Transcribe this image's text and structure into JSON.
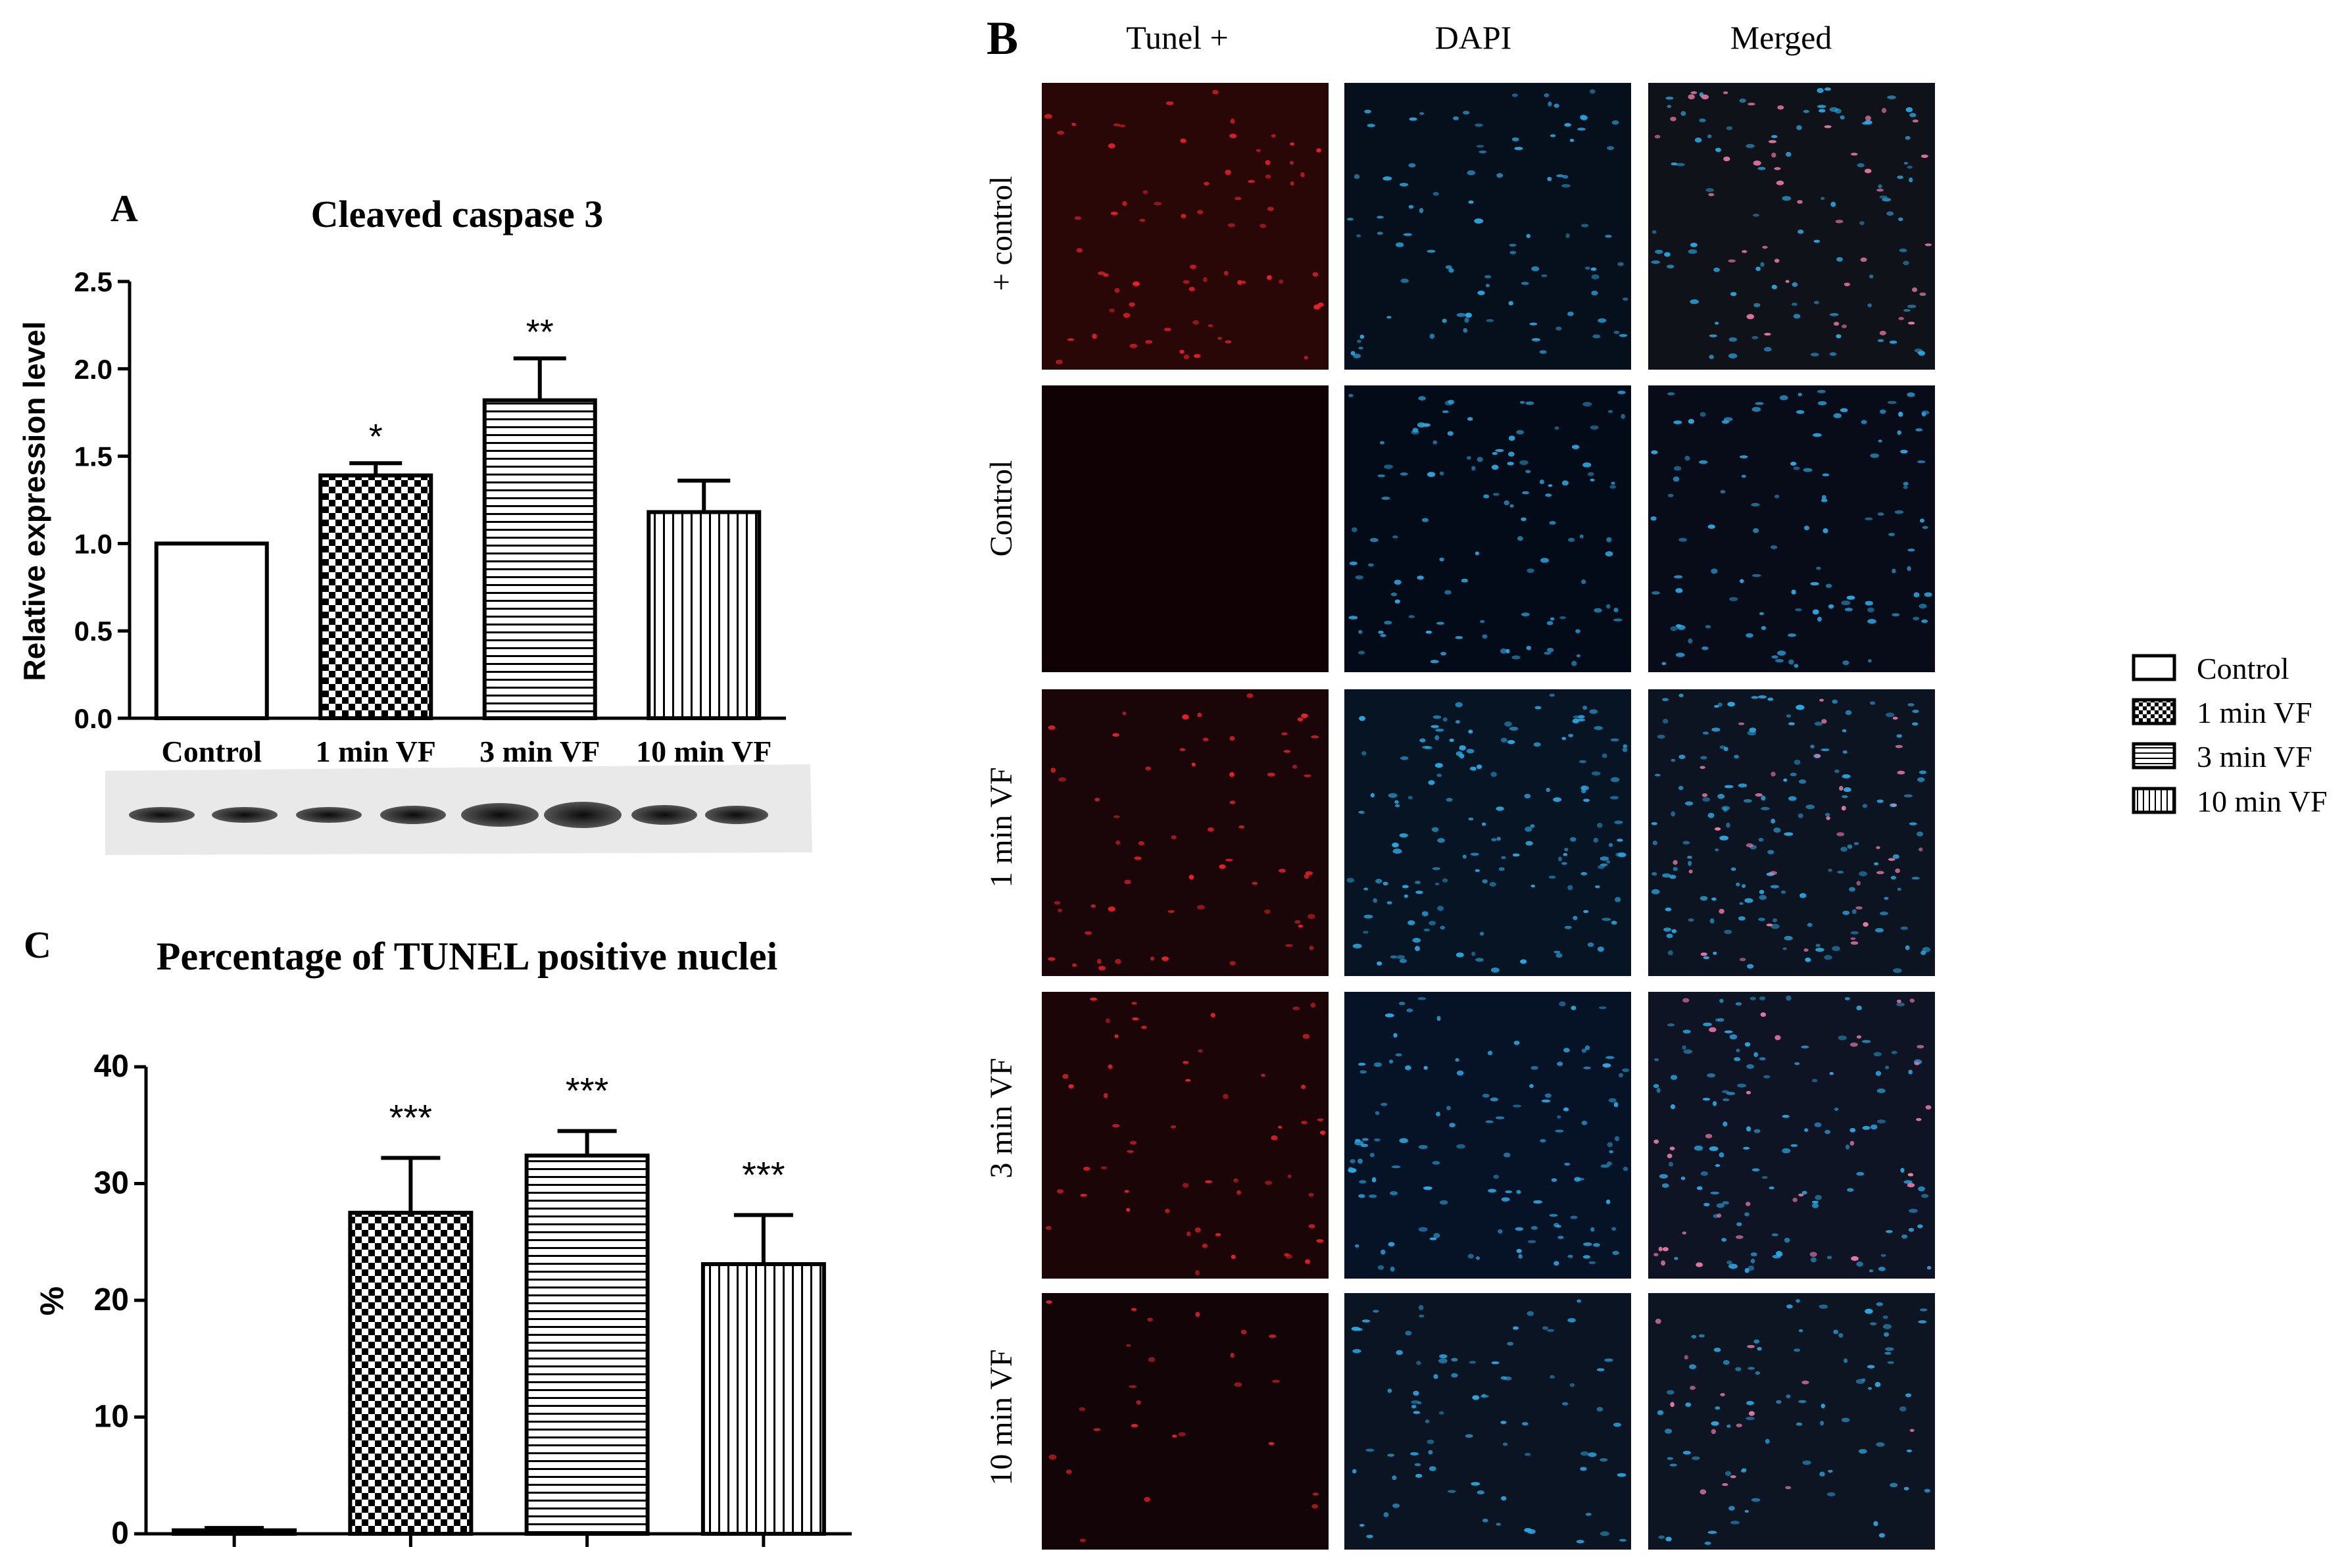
{
  "panels": {
    "a_letter": "A",
    "b_letter": "B",
    "c_letter": "C"
  },
  "chart_data": [
    {
      "type": "bar",
      "panel": "A",
      "title": "Cleaved caspase 3",
      "ylabel": "Relative expression level",
      "xlabel": "",
      "categories": [
        "Control",
        "1 min VF",
        "3 min VF",
        "10 min VF"
      ],
      "values": [
        1.0,
        1.39,
        1.82,
        1.18
      ],
      "errors": [
        0.0,
        0.07,
        0.24,
        0.18
      ],
      "significance": [
        "",
        "*",
        "**",
        ""
      ],
      "patterns": [
        "none",
        "checker",
        "horizontal",
        "vertical"
      ],
      "ylim": [
        0,
        2.5
      ],
      "yticks": [
        0.0,
        0.5,
        1.0,
        1.5,
        2.0,
        2.5
      ],
      "ytick_labels": [
        "0.0",
        "0.5",
        "1.0",
        "1.5",
        "2.0",
        "2.5"
      ],
      "western_blot_bands": 8,
      "grid": false
    },
    {
      "type": "bar",
      "panel": "C",
      "title": "Percentage of TUNEL positive nuclei",
      "ylabel": "%",
      "xlabel": "",
      "categories": [
        "Control",
        "1 min VF",
        "3 min VF",
        "10 min VF"
      ],
      "values": [
        0.3,
        27.5,
        32.4,
        23.1
      ],
      "errors": [
        0.2,
        4.7,
        2.1,
        4.2
      ],
      "significance": [
        "",
        "***",
        "***",
        "***"
      ],
      "patterns": [
        "none",
        "checker",
        "horizontal",
        "vertical"
      ],
      "ylim": [
        0,
        40
      ],
      "yticks": [
        0,
        10,
        20,
        30,
        40
      ],
      "ytick_labels": [
        "0",
        "10",
        "20",
        "30",
        "40"
      ],
      "grid": false
    }
  ],
  "micrographs": {
    "columns": [
      "Tunel +",
      "DAPI",
      "Merged"
    ],
    "rows": [
      "+ control",
      "Control",
      "1 min VF",
      "3 min VF",
      "10 min VF"
    ],
    "colors": {
      "tunel": "#e8202a",
      "dapi": "#2aa6e0",
      "merged_pink": "#e87aa8",
      "tile_bg": "#0b0d12"
    }
  },
  "legend": {
    "position": "right",
    "items": [
      {
        "label": "Control",
        "pattern": "none"
      },
      {
        "label": "1 min VF",
        "pattern": "checker"
      },
      {
        "label": "3 min VF",
        "pattern": "horizontal"
      },
      {
        "label": "10 min VF",
        "pattern": "vertical"
      }
    ]
  }
}
